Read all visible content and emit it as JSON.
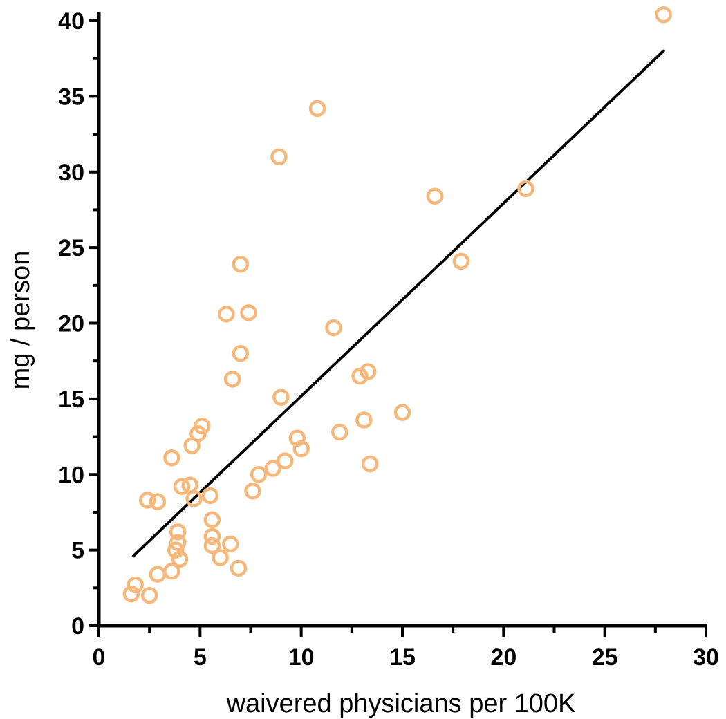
{
  "chart_data": {
    "type": "scatter",
    "title": "",
    "xlabel": "waivered physicians per 100K",
    "ylabel": "mg / person",
    "xlim": [
      0,
      30
    ],
    "ylim": [
      0,
      40
    ],
    "x_ticks": [
      0,
      5,
      10,
      15,
      20,
      25,
      30
    ],
    "y_ticks": [
      0,
      5,
      10,
      15,
      20,
      25,
      30,
      35,
      40
    ],
    "x_tick_labels": [
      "0",
      "5",
      "10",
      "15",
      "20",
      "25",
      "30"
    ],
    "y_tick_labels": [
      "0",
      "5",
      "10",
      "15",
      "20",
      "25",
      "30",
      "35",
      "40"
    ],
    "grid": false,
    "legend": "none",
    "marker_color": "#f5b87a",
    "line_color": "#000000",
    "points": [
      {
        "x": 1.6,
        "y": 2.1
      },
      {
        "x": 1.8,
        "y": 2.7
      },
      {
        "x": 2.5,
        "y": 2.0
      },
      {
        "x": 2.4,
        "y": 8.3
      },
      {
        "x": 2.9,
        "y": 8.2
      },
      {
        "x": 2.9,
        "y": 3.4
      },
      {
        "x": 3.6,
        "y": 3.6
      },
      {
        "x": 3.6,
        "y": 11.1
      },
      {
        "x": 3.8,
        "y": 5.0
      },
      {
        "x": 3.9,
        "y": 5.5
      },
      {
        "x": 3.9,
        "y": 6.2
      },
      {
        "x": 4.0,
        "y": 4.4
      },
      {
        "x": 4.1,
        "y": 9.2
      },
      {
        "x": 4.5,
        "y": 9.3
      },
      {
        "x": 4.6,
        "y": 11.9
      },
      {
        "x": 4.7,
        "y": 8.4
      },
      {
        "x": 4.9,
        "y": 12.7
      },
      {
        "x": 5.1,
        "y": 13.2
      },
      {
        "x": 5.5,
        "y": 8.6
      },
      {
        "x": 5.6,
        "y": 7.0
      },
      {
        "x": 5.6,
        "y": 5.9
      },
      {
        "x": 5.6,
        "y": 5.3
      },
      {
        "x": 6.0,
        "y": 4.5
      },
      {
        "x": 6.3,
        "y": 20.6
      },
      {
        "x": 6.5,
        "y": 5.4
      },
      {
        "x": 6.6,
        "y": 16.3
      },
      {
        "x": 6.9,
        "y": 3.8
      },
      {
        "x": 7.0,
        "y": 23.9
      },
      {
        "x": 7.0,
        "y": 18.0
      },
      {
        "x": 7.4,
        "y": 20.7
      },
      {
        "x": 7.6,
        "y": 8.9
      },
      {
        "x": 7.9,
        "y": 10.0
      },
      {
        "x": 8.6,
        "y": 10.4
      },
      {
        "x": 8.9,
        "y": 31.0
      },
      {
        "x": 9.0,
        "y": 15.1
      },
      {
        "x": 9.2,
        "y": 10.9
      },
      {
        "x": 9.8,
        "y": 12.4
      },
      {
        "x": 10.0,
        "y": 11.7
      },
      {
        "x": 10.8,
        "y": 34.2
      },
      {
        "x": 11.6,
        "y": 19.7
      },
      {
        "x": 11.9,
        "y": 12.8
      },
      {
        "x": 12.9,
        "y": 16.5
      },
      {
        "x": 13.1,
        "y": 13.6
      },
      {
        "x": 13.3,
        "y": 16.8
      },
      {
        "x": 13.4,
        "y": 10.7
      },
      {
        "x": 15.0,
        "y": 14.1
      },
      {
        "x": 16.6,
        "y": 28.4
      },
      {
        "x": 17.9,
        "y": 24.1
      },
      {
        "x": 21.1,
        "y": 28.9
      },
      {
        "x": 27.9,
        "y": 40.4
      }
    ],
    "fit_line": {
      "x": [
        1.7,
        27.9
      ],
      "y": [
        4.6,
        38.0
      ]
    }
  }
}
